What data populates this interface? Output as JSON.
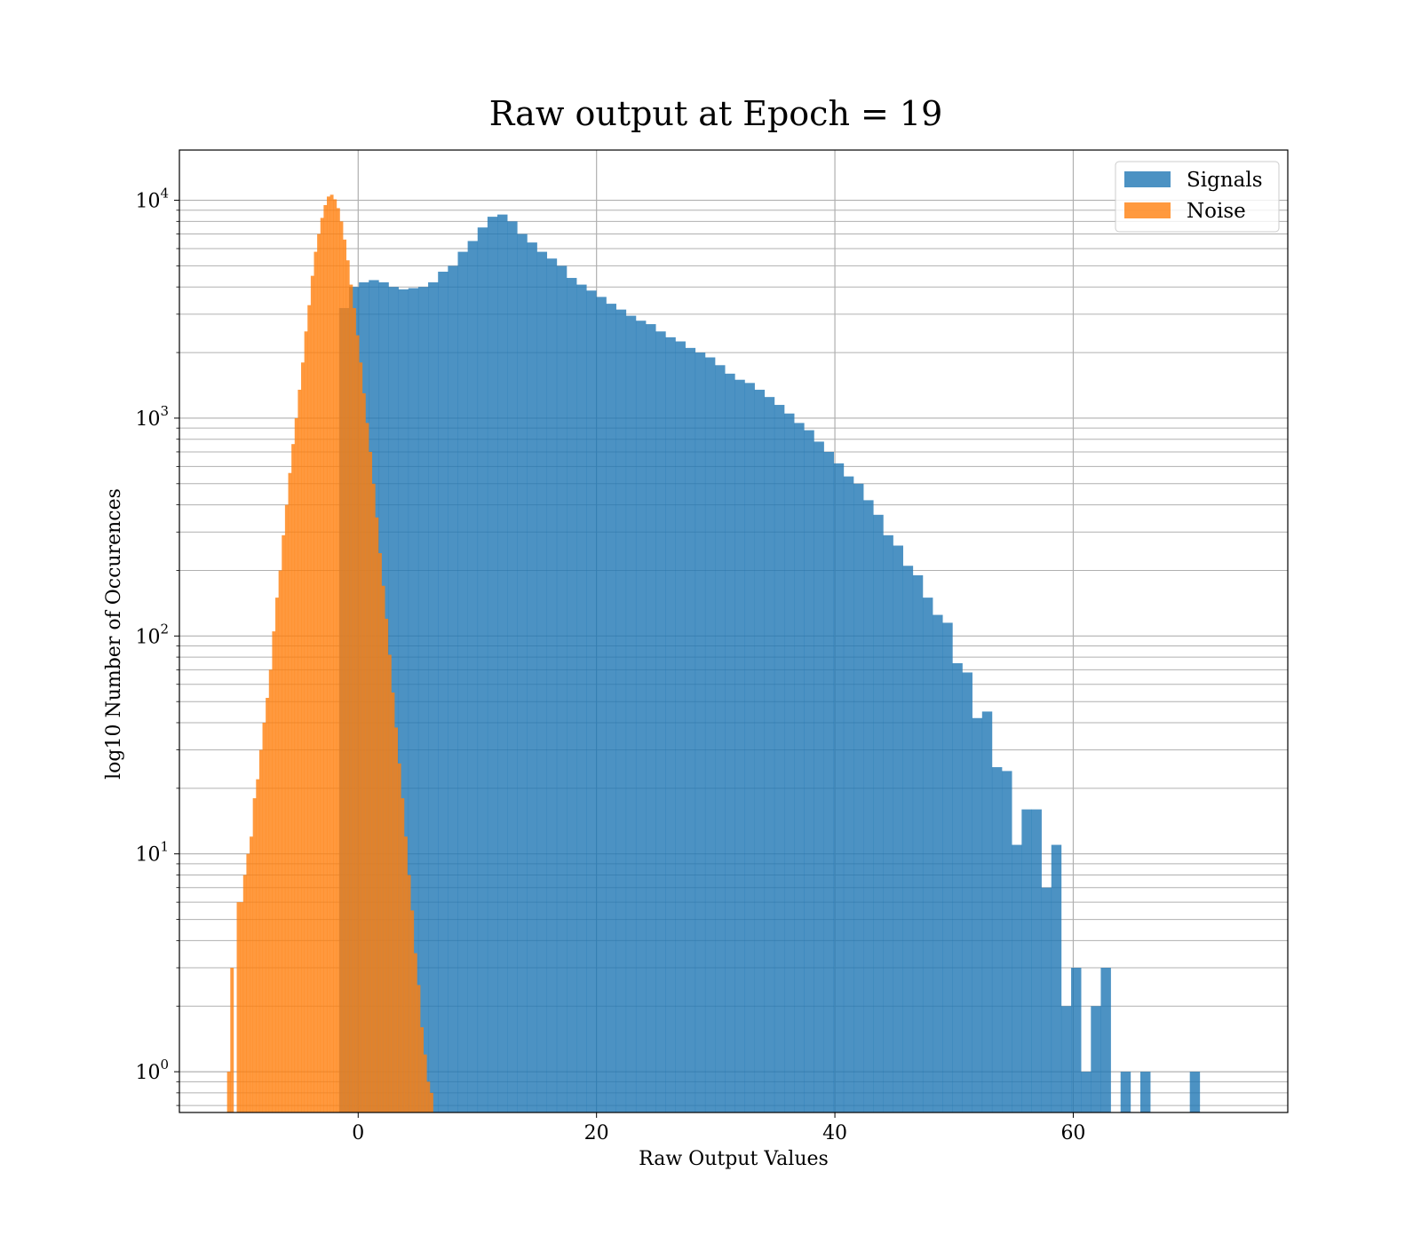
{
  "chart_data": {
    "type": "bar",
    "title": "Raw output at Epoch = 19",
    "xlabel": "Raw Output Values",
    "ylabel": "log10 Number of Occurences",
    "yscale": "log",
    "xlim": [
      -15,
      78
    ],
    "ylim": [
      0.65,
      17000
    ],
    "grid": true,
    "grid_minor_y": true,
    "legend_placement": "top-right",
    "x_ticks": [
      0,
      20,
      40,
      60
    ],
    "y_ticks": [
      {
        "value": 1,
        "base": "10",
        "exp": "0"
      },
      {
        "value": 10,
        "base": "10",
        "exp": "1"
      },
      {
        "value": 100,
        "base": "10",
        "exp": "2"
      },
      {
        "value": 1000,
        "base": "10",
        "exp": "3"
      },
      {
        "value": 10000,
        "base": "10",
        "exp": "4"
      }
    ],
    "series": [
      {
        "name": "Signals",
        "color": "#1f77b4",
        "opacity": 0.8,
        "bin_start": -1.6,
        "bin_width": 0.83,
        "counts": [
          3200,
          4000,
          4200,
          4300,
          4200,
          4000,
          3900,
          3950,
          4000,
          4200,
          4700,
          5000,
          5800,
          6500,
          7500,
          8400,
          8600,
          8000,
          7000,
          6400,
          5800,
          5400,
          5000,
          4400,
          4100,
          3850,
          3600,
          3350,
          3150,
          2950,
          2800,
          2700,
          2500,
          2350,
          2250,
          2100,
          2000,
          1900,
          1750,
          1600,
          1500,
          1450,
          1350,
          1250,
          1150,
          1050,
          950,
          880,
          780,
          700,
          620,
          540,
          500,
          420,
          360,
          290,
          260,
          210,
          190,
          150,
          125,
          115,
          75,
          68,
          42,
          45,
          25,
          24,
          11,
          16,
          16,
          7,
          11,
          2,
          3,
          1,
          2,
          3,
          0,
          1,
          0,
          1,
          0,
          0,
          0,
          0,
          1
        ]
      },
      {
        "name": "Noise",
        "color": "#ff7f0e",
        "opacity": 0.8,
        "bin_start": -11.0,
        "bin_width": 0.27,
        "counts": [
          1,
          3,
          0,
          6,
          6,
          8,
          10,
          12,
          18,
          22,
          30,
          40,
          52,
          70,
          105,
          150,
          200,
          290,
          400,
          560,
          760,
          1000,
          1350,
          1800,
          2500,
          3300,
          4500,
          5800,
          7000,
          8300,
          9500,
          10400,
          10600,
          10100,
          9200,
          8000,
          6600,
          5300,
          4100,
          3200,
          2400,
          1800,
          1300,
          950,
          700,
          500,
          350,
          240,
          170,
          120,
          82,
          55,
          38,
          26,
          18,
          12,
          8,
          5.5,
          3.5,
          2.5,
          1.6,
          1.2,
          0.9,
          0.8,
          0,
          0,
          0,
          0,
          0,
          0,
          0
        ]
      }
    ]
  }
}
